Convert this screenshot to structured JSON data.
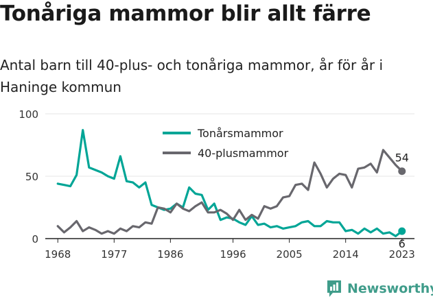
{
  "title": "Tonåriga mammor blir allt färre",
  "subtitle": "Antal barn till 40-plus- och tonåriga mammor, år för år i Haninge kommun",
  "brand": {
    "name": "Newsworthy",
    "icon": "newsworthy-logo-icon",
    "color": "#3f9c8a"
  },
  "chart_data": {
    "type": "line",
    "title": "Tonåriga mammor blir allt färre",
    "subtitle": "Antal barn till 40-plus- och tonåriga mammor, år för år i Haninge kommun",
    "xlabel": "",
    "ylabel": "",
    "x": [
      1968,
      1969,
      1970,
      1971,
      1972,
      1973,
      1974,
      1975,
      1976,
      1977,
      1978,
      1979,
      1980,
      1981,
      1982,
      1983,
      1984,
      1985,
      1986,
      1987,
      1988,
      1989,
      1990,
      1991,
      1992,
      1993,
      1994,
      1995,
      1996,
      1997,
      1998,
      1999,
      2000,
      2001,
      2002,
      2003,
      2004,
      2005,
      2006,
      2007,
      2008,
      2009,
      2010,
      2011,
      2012,
      2013,
      2014,
      2015,
      2016,
      2017,
      2018,
      2019,
      2020,
      2021,
      2022,
      2023
    ],
    "xlim": [
      1966,
      2025
    ],
    "ylim": [
      0,
      100
    ],
    "x_ticks": [
      "1968",
      "1977",
      "1986",
      "1996",
      "2005",
      "2014",
      "2023"
    ],
    "y_ticks": [
      "0",
      "50",
      "100"
    ],
    "grid": true,
    "legend": "top-center",
    "series": [
      {
        "name": "Tonårsmammor",
        "color": "#00a596",
        "values": [
          44,
          43,
          42,
          51,
          87,
          57,
          55,
          53,
          50,
          48,
          66,
          46,
          45,
          41,
          45,
          27,
          25,
          23,
          24,
          28,
          25,
          41,
          36,
          35,
          23,
          28,
          15,
          17,
          16,
          13,
          11,
          18,
          11,
          12,
          9,
          10,
          8,
          9,
          10,
          13,
          14,
          10,
          10,
          14,
          13,
          13,
          6,
          7,
          4,
          8,
          5,
          8,
          4,
          5,
          2,
          6
        ],
        "end_label": "6"
      },
      {
        "name": "40-plusmammor",
        "color": "#68676d",
        "values": [
          10,
          5,
          9,
          14,
          6,
          9,
          7,
          4,
          6,
          4,
          8,
          6,
          10,
          9,
          13,
          12,
          25,
          24,
          21,
          28,
          24,
          22,
          26,
          29,
          21,
          21,
          23,
          20,
          15,
          23,
          15,
          19,
          16,
          26,
          24,
          26,
          33,
          34,
          43,
          44,
          39,
          61,
          52,
          41,
          48,
          52,
          51,
          41,
          56,
          57,
          60,
          53,
          71,
          65,
          59,
          54
        ],
        "end_label": "54"
      }
    ]
  }
}
